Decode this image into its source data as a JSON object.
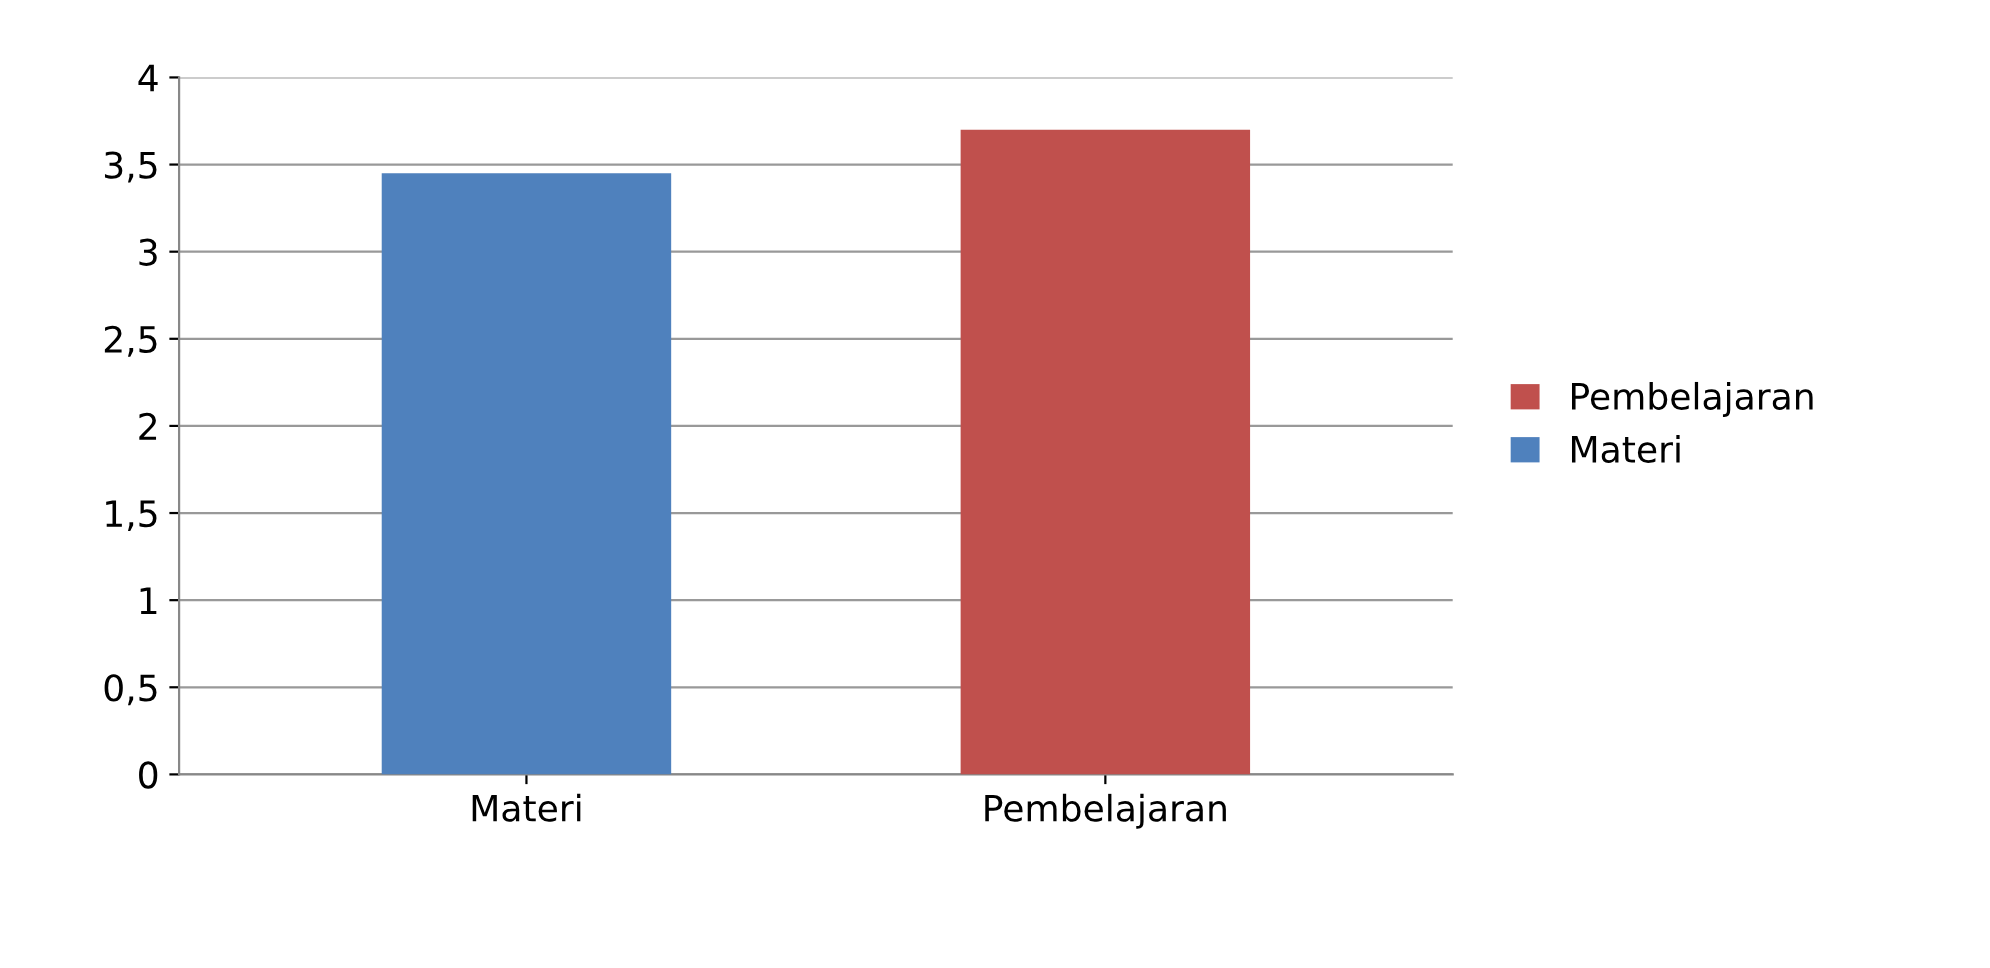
{
  "chart_data": {
    "type": "bar",
    "categories": [
      "Materi",
      "Pembelajaran"
    ],
    "series": [
      {
        "name": "Pembelajaran",
        "color": "#c0504d",
        "values": [
          null,
          3.7
        ]
      },
      {
        "name": "Materi",
        "color": "#4f81bd",
        "values": [
          3.45,
          null
        ]
      }
    ],
    "ylim": [
      0,
      4
    ],
    "yticks": [
      0,
      {
        "value": 0.5,
        "label": "0,5"
      },
      1,
      {
        "value": 1.5,
        "label": "1,5"
      },
      2,
      {
        "value": 2.5,
        "label": "2,5"
      },
      3,
      {
        "value": 3.5,
        "label": "3,5"
      },
      4
    ],
    "grid": "y",
    "legend": "right"
  }
}
